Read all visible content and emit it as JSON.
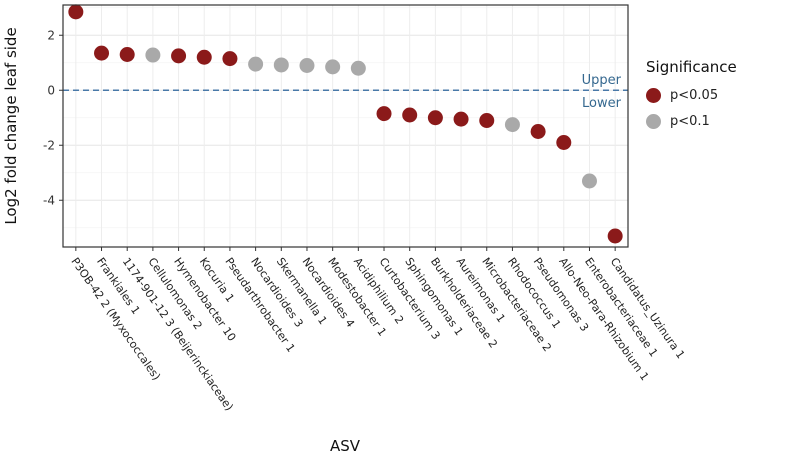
{
  "chart_data": {
    "type": "scatter",
    "title": "",
    "xlabel": "ASV",
    "ylabel": "Log2 fold change leaf side",
    "ylim": [
      -5.7,
      3.1
    ],
    "yticks": [
      2,
      0,
      -2,
      -4
    ],
    "grid": true,
    "legend_position": "right",
    "refline": {
      "y": 0,
      "style": "dashed",
      "color": "#4878a8",
      "upper_label": "Upper",
      "lower_label": "Lower",
      "label_color": "#35688f"
    },
    "significance_colors": {
      "p<0.05": "#8b1a1a",
      "p<0.1": "#a9a9a9"
    },
    "points": [
      {
        "asv": "P3OB-42 2 (Myxococcales)",
        "value": 2.85,
        "significance": "p<0.05"
      },
      {
        "asv": "Frankiales 1",
        "value": 1.35,
        "significance": "p<0.05"
      },
      {
        "asv": "1174-901-12 3 (Beijerinckiaceae)",
        "value": 1.3,
        "significance": "p<0.05"
      },
      {
        "asv": "Cellulomonas 2",
        "value": 1.28,
        "significance": "p<0.1"
      },
      {
        "asv": "Hymenobacter 10",
        "value": 1.25,
        "significance": "p<0.05"
      },
      {
        "asv": "Kocuria 1",
        "value": 1.2,
        "significance": "p<0.05"
      },
      {
        "asv": "Pseudarthrobacter 1",
        "value": 1.15,
        "significance": "p<0.05"
      },
      {
        "asv": "Nocardioides 3",
        "value": 0.95,
        "significance": "p<0.1"
      },
      {
        "asv": "Skermanella 1",
        "value": 0.92,
        "significance": "p<0.1"
      },
      {
        "asv": "Nocardioides 4",
        "value": 0.9,
        "significance": "p<0.1"
      },
      {
        "asv": "Modestobacter 1",
        "value": 0.85,
        "significance": "p<0.1"
      },
      {
        "asv": "Acidiphilium 2",
        "value": 0.8,
        "significance": "p<0.1"
      },
      {
        "asv": "Curtobacterium 3",
        "value": -0.85,
        "significance": "p<0.05"
      },
      {
        "asv": "Sphingomonas 1",
        "value": -0.9,
        "significance": "p<0.05"
      },
      {
        "asv": "Burkholderiaceae 2",
        "value": -1.0,
        "significance": "p<0.05"
      },
      {
        "asv": "Aureimonas 1",
        "value": -1.05,
        "significance": "p<0.05"
      },
      {
        "asv": "Microbacteriaceae 2",
        "value": -1.1,
        "significance": "p<0.05"
      },
      {
        "asv": "Rhodococcus 1",
        "value": -1.25,
        "significance": "p<0.1"
      },
      {
        "asv": "Pseudomonas 3",
        "value": -1.5,
        "significance": "p<0.05"
      },
      {
        "asv": "Allo-Neo-Para-Rhizobium 1",
        "value": -1.9,
        "significance": "p<0.05"
      },
      {
        "asv": "Enterobacteriaceae 1",
        "value": -3.3,
        "significance": "p<0.1"
      },
      {
        "asv": "Candidatus_Uzinura 1",
        "value": -5.3,
        "significance": "p<0.05"
      }
    ]
  },
  "legend": {
    "title": "Significance",
    "items": [
      {
        "label": "p<0.05",
        "color": "#8b1a1a"
      },
      {
        "label": "p<0.1",
        "color": "#a9a9a9"
      }
    ]
  }
}
